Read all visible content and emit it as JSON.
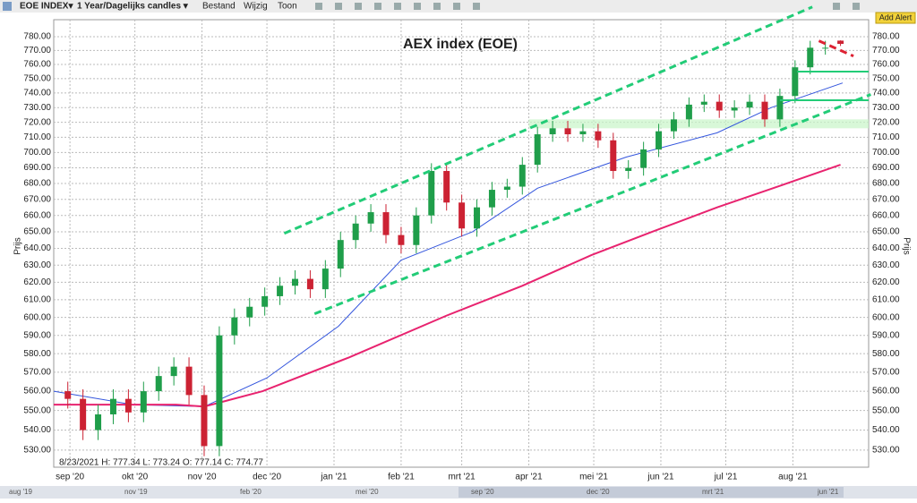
{
  "toolbar": {
    "symbol": "EOE INDEX▾",
    "period": "1 Year/Dagelijks candles ▾",
    "menus": [
      "Bestand",
      "Wijzig",
      "Toon"
    ],
    "button": "Add Alert"
  },
  "navigator": {
    "labels": [
      "aug '19",
      "nov '19",
      "feb '20",
      "mei '20",
      "sep '20",
      "dec '20",
      "mrt '21",
      "jun '21"
    ]
  },
  "chart_data": {
    "type": "candlestick",
    "title": "AEX index (EOE)",
    "y_label": "Prijs",
    "info": "8/23/2021  H: 777.34  L: 773.24  O: 777.14  C: 774.77",
    "log_y": true,
    "grid": true,
    "xlim": [
      3.5,
      380
    ],
    "ylim": [
      521.6,
      792.5
    ],
    "xticks": [
      {
        "value": 11,
        "label": "sep '20"
      },
      {
        "value": 41,
        "label": "okt '20"
      },
      {
        "value": 72,
        "label": "nov '20"
      },
      {
        "value": 102,
        "label": "dec '20"
      },
      {
        "value": 133,
        "label": "jan '21"
      },
      {
        "value": 164,
        "label": "feb '21"
      },
      {
        "value": 192,
        "label": "mrt '21"
      },
      {
        "value": 223,
        "label": "apr '21"
      },
      {
        "value": 253,
        "label": "mei '21"
      },
      {
        "value": 284,
        "label": "jun '21"
      },
      {
        "value": 314,
        "label": "jul '21"
      },
      {
        "value": 345,
        "label": "aug '21"
      }
    ],
    "yticks": [
      {
        "value": 530,
        "label": "530.00"
      },
      {
        "value": 540,
        "label": "540.00"
      },
      {
        "value": 550,
        "label": "550.00"
      },
      {
        "value": 560,
        "label": "560.00"
      },
      {
        "value": 570,
        "label": "570.00"
      },
      {
        "value": 580,
        "label": "580.00"
      },
      {
        "value": 590,
        "label": "590.00"
      },
      {
        "value": 600,
        "label": "600.00"
      },
      {
        "value": 610,
        "label": "610.00"
      },
      {
        "value": 620,
        "label": "620.00"
      },
      {
        "value": 630,
        "label": "630.00"
      },
      {
        "value": 640,
        "label": "640.00"
      },
      {
        "value": 650,
        "label": "650.00"
      },
      {
        "value": 660,
        "label": "660.00"
      },
      {
        "value": 670,
        "label": "670.00"
      },
      {
        "value": 680,
        "label": "680.00"
      },
      {
        "value": 690,
        "label": "690.00"
      },
      {
        "value": 700,
        "label": "700.00"
      },
      {
        "value": 710,
        "label": "710.00"
      },
      {
        "value": 720,
        "label": "720.00"
      },
      {
        "value": 730,
        "label": "730.00"
      },
      {
        "value": 740,
        "label": "740.00"
      },
      {
        "value": 750,
        "label": "750.00"
      },
      {
        "value": 760,
        "label": "760.00"
      },
      {
        "value": 770,
        "label": "770.00"
      },
      {
        "value": 780,
        "label": "780.00"
      }
    ],
    "candles": {
      "up_color": "#1f9e4a",
      "down_color": "#cc2233",
      "x": [
        10,
        17,
        24,
        31,
        38,
        45,
        52,
        59,
        66,
        73,
        80,
        87,
        94,
        101,
        108,
        115,
        122,
        129,
        136,
        143,
        150,
        157,
        164,
        171,
        178,
        185,
        192,
        199,
        206,
        213,
        220,
        227,
        234,
        241,
        248,
        255,
        262,
        269,
        276,
        283,
        290,
        297,
        304,
        311,
        318,
        325,
        332,
        339,
        346,
        353,
        360,
        367
      ],
      "open": [
        560,
        556,
        540,
        548,
        556,
        549,
        560,
        568,
        573,
        558,
        532,
        590,
        600,
        606,
        612,
        618,
        622,
        616,
        628,
        645,
        655,
        662,
        648,
        642,
        660,
        688,
        668,
        652,
        665,
        676,
        678,
        692,
        712,
        716,
        712,
        714,
        708,
        688,
        690,
        702,
        714,
        722,
        732,
        734,
        728,
        730,
        734,
        722,
        738,
        758,
        772,
        777.14
      ],
      "high": [
        565,
        561,
        553,
        561,
        561,
        565,
        573,
        578,
        578,
        563,
        595,
        605,
        611,
        617,
        623,
        627,
        627,
        633,
        650,
        660,
        667,
        667,
        653,
        665,
        693,
        693,
        673,
        670,
        681,
        683,
        697,
        717,
        721,
        721,
        719,
        719,
        713,
        695,
        707,
        719,
        727,
        737,
        739,
        739,
        735,
        739,
        739,
        743,
        763,
        777,
        777,
        777.34
      ],
      "low": [
        551,
        535,
        535,
        543,
        544,
        544,
        555,
        563,
        553,
        527,
        527,
        585,
        595,
        601,
        607,
        613,
        611,
        611,
        623,
        640,
        650,
        643,
        637,
        637,
        655,
        663,
        647,
        647,
        660,
        671,
        673,
        687,
        707,
        707,
        707,
        703,
        683,
        683,
        685,
        697,
        709,
        717,
        727,
        723,
        723,
        725,
        717,
        717,
        733,
        753,
        767,
        773.24
      ],
      "close": [
        556,
        540,
        548,
        556,
        549,
        560,
        568,
        573,
        558,
        532,
        590,
        600,
        606,
        612,
        618,
        622,
        616,
        628,
        645,
        655,
        662,
        648,
        642,
        660,
        688,
        668,
        652,
        665,
        676,
        678,
        692,
        712,
        716,
        712,
        714,
        708,
        688,
        690,
        702,
        714,
        722,
        732,
        734,
        728,
        730,
        734,
        722,
        738,
        758,
        772,
        772,
        774.77
      ]
    },
    "series": [
      {
        "color": "#3355dd",
        "x": [
          3.5,
          40,
          73,
          102,
          135,
          164,
          197,
          227,
          268,
          310,
          335,
          368
        ],
        "values": [
          560,
          553,
          552,
          567,
          595,
          633,
          650,
          677,
          697,
          713,
          730,
          747
        ]
      },
      {
        "color": "#e8236f",
        "x": [
          3.5,
          60,
          73,
          100,
          140,
          185,
          220,
          252,
          280,
          310,
          340,
          367
        ],
        "values": [
          553,
          553,
          552,
          560,
          578,
          601,
          618,
          636,
          650,
          665,
          679,
          692
        ]
      }
    ],
    "trendlines": [
      {
        "color": "#22cc77",
        "dash": true,
        "x": [
          110,
          354
        ],
        "values": [
          649,
          802
        ]
      },
      {
        "color": "#22cc77",
        "dash": true,
        "x": [
          124,
          381
        ],
        "values": [
          602,
          739
        ]
      },
      {
        "color": "#22cc77",
        "dash": false,
        "x": [
          347,
          380
        ],
        "values": [
          755,
          755
        ]
      },
      {
        "color": "#22cc77",
        "dash": false,
        "x": [
          339,
          380
        ],
        "values": [
          735,
          735
        ]
      },
      {
        "color": "#dd2233",
        "dash": true,
        "x": [
          357,
          373
        ],
        "values": [
          777,
          766
        ]
      }
    ],
    "band": {
      "color": "#c8f5c8",
      "x": [
        223,
        380
      ],
      "values": [
        716,
        722
      ]
    }
  }
}
